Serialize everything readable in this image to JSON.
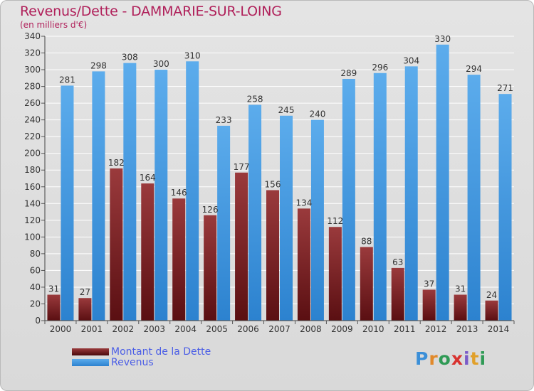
{
  "chart_data": {
    "type": "bar",
    "title": "Revenus/Dette - DAMMARIE-SUR-LOING",
    "subtitle": "(en milliers d'€)",
    "categories": [
      "2000",
      "2001",
      "2002",
      "2003",
      "2004",
      "2005",
      "2006",
      "2007",
      "2008",
      "2009",
      "2010",
      "2011",
      "2012",
      "2013",
      "2014"
    ],
    "series": [
      {
        "name": "Montant de la Dette",
        "color": "#8b2a2e",
        "values": [
          31,
          27,
          182,
          164,
          146,
          126,
          177,
          156,
          134,
          112,
          88,
          63,
          37,
          31,
          24
        ]
      },
      {
        "name": "Revenus",
        "color": "#3f97df",
        "values": [
          281,
          298,
          308,
          300,
          310,
          233,
          258,
          245,
          240,
          289,
          296,
          304,
          330,
          294,
          271
        ]
      }
    ],
    "ylim": [
      0,
      340
    ],
    "yticks": [
      0,
      20,
      40,
      60,
      80,
      100,
      120,
      140,
      160,
      180,
      200,
      220,
      240,
      260,
      280,
      300,
      320,
      340
    ],
    "grid": true,
    "legend_position": "bottom-left"
  },
  "logo_text": "Proxiti"
}
